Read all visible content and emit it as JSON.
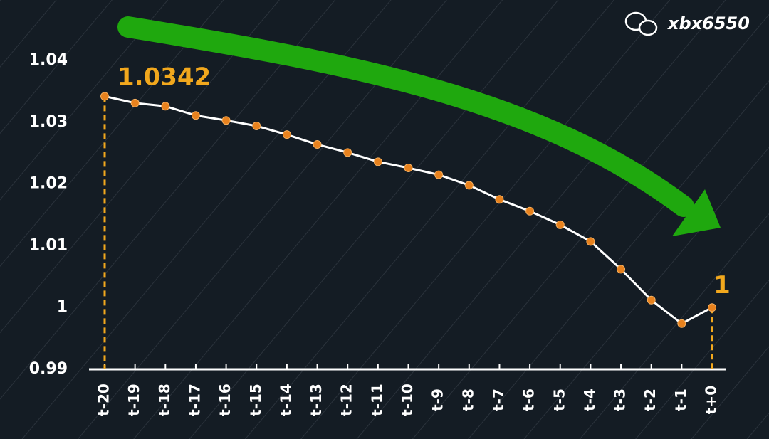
{
  "watermark": "xbx6550",
  "chart_data": {
    "type": "line",
    "categories": [
      "t-20",
      "t-19",
      "t-18",
      "t-17",
      "t-16",
      "t-15",
      "t-14",
      "t-13",
      "t-12",
      "t-11",
      "t-10",
      "t-9",
      "t-8",
      "t-7",
      "t-6",
      "t-5",
      "t-4",
      "t-3",
      "t-2",
      "t-1",
      "t+0"
    ],
    "values": [
      1.0342,
      1.0331,
      1.0326,
      1.0311,
      1.0303,
      1.0294,
      1.028,
      1.0264,
      1.0251,
      1.0236,
      1.0226,
      1.0215,
      1.0198,
      1.0175,
      1.0156,
      1.0134,
      1.0107,
      1.0062,
      1.0012,
      0.9974,
      1
    ],
    "color": "#ffffff",
    "marker_color": "#e8821e",
    "label_color": "#f2a81d",
    "ylim": [
      0.99,
      1.04
    ],
    "yticks": [
      0.99,
      1,
      1.01,
      1.02,
      1.03,
      1.04
    ]
  }
}
